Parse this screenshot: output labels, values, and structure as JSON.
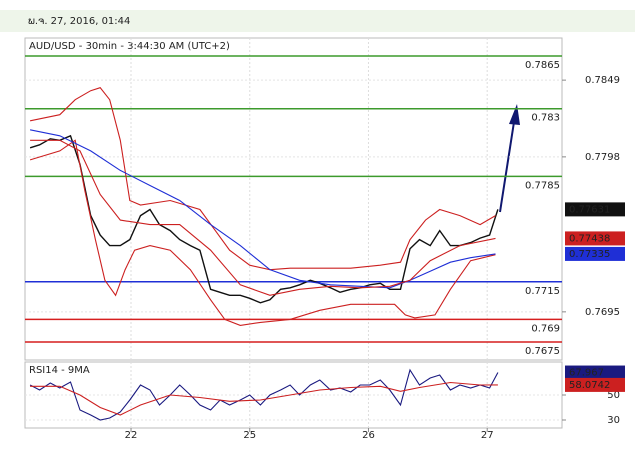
{
  "header": "ພ.ຈ. 27, 2016, 01:44",
  "chart_data": [
    {
      "type": "line",
      "title": "AUD/USD - 30min - 3:44:30 AM (UTC+2)",
      "xlim": [
        0.107,
        4.63
      ],
      "ylim": [
        0.7663,
        0.7877
      ],
      "yticks": [
        0.7695,
        0.7798,
        0.7849
      ],
      "grid": true,
      "levels": [
        {
          "value": 0.7865,
          "color": "#3c9a2c"
        },
        {
          "value": 0.783,
          "color": "#3c9a2c"
        },
        {
          "value": 0.7785,
          "color": "#3c9a2c"
        },
        {
          "value": 0.7715,
          "color": "#1f2fd6"
        },
        {
          "value": 0.769,
          "color": "#d61f1f"
        },
        {
          "value": 0.7675,
          "color": "#d61f1f"
        }
      ],
      "series": [
        {
          "color": "#111111",
          "tag": true,
          "x": [
            0.15,
            0.23,
            0.32,
            0.4,
            0.49,
            0.57,
            0.66,
            0.74,
            0.82,
            0.91,
            0.99,
            1.08,
            1.16,
            1.24,
            1.33,
            1.41,
            1.5,
            1.58,
            1.67,
            1.75,
            1.83,
            1.92,
            2.0,
            2.09,
            2.17,
            2.26,
            2.34,
            2.42,
            2.51,
            2.59,
            2.68,
            2.76,
            2.85,
            2.93,
            3.01,
            3.1,
            3.18,
            3.27,
            3.35,
            3.43,
            3.52,
            3.6,
            3.69,
            3.77,
            3.86,
            3.94,
            4.02,
            4.09
          ],
          "values": [
            0.7804,
            0.7806,
            0.781,
            0.7809,
            0.7812,
            0.7793,
            0.7759,
            0.7746,
            0.7739,
            0.7739,
            0.7743,
            0.7759,
            0.7763,
            0.7753,
            0.7749,
            0.7743,
            0.7739,
            0.7736,
            0.771,
            0.7708,
            0.7706,
            0.7706,
            0.7704,
            0.7701,
            0.7703,
            0.771,
            0.7711,
            0.7713,
            0.7716,
            0.7714,
            0.7711,
            0.7708,
            0.771,
            0.7711,
            0.7713,
            0.7714,
            0.771,
            0.771,
            0.7737,
            0.7743,
            0.7739,
            0.7749,
            0.7739,
            0.7739,
            0.7741,
            0.7744,
            0.7746,
            0.77631
          ]
        },
        {
          "color": "#cc2020",
          "x": [
            0.15,
            0.4,
            0.53,
            0.66,
            0.74,
            0.82,
            0.91,
            0.99,
            1.08,
            1.33,
            1.58,
            1.71,
            1.83,
            2.0,
            2.17,
            2.34,
            2.59,
            2.85,
            3.1,
            3.27,
            3.35,
            3.48,
            3.6,
            3.77,
            3.94,
            4.07
          ],
          "values": [
            0.7822,
            0.7826,
            0.7836,
            0.7842,
            0.7844,
            0.7836,
            0.7809,
            0.7769,
            0.7766,
            0.7769,
            0.7763,
            0.7749,
            0.7736,
            0.7726,
            0.7723,
            0.7724,
            0.7724,
            0.7724,
            0.7726,
            0.7728,
            0.7743,
            0.7756,
            0.7763,
            0.7759,
            0.7753,
            0.7759
          ]
        },
        {
          "color": "#cc2020",
          "x": [
            0.15,
            0.4,
            0.53,
            0.61,
            0.7,
            0.78,
            0.87,
            0.95,
            1.03,
            1.16,
            1.33,
            1.5,
            1.67,
            1.79,
            1.92,
            2.09,
            2.34,
            2.59,
            2.85,
            3.1,
            3.22,
            3.31,
            3.39,
            3.56,
            3.69,
            3.86,
            4.07
          ],
          "values": [
            0.7796,
            0.7802,
            0.7809,
            0.7776,
            0.7743,
            0.7716,
            0.7706,
            0.7723,
            0.7736,
            0.7739,
            0.7736,
            0.7723,
            0.7703,
            0.769,
            0.7686,
            0.7688,
            0.769,
            0.7696,
            0.77,
            0.77,
            0.77,
            0.7693,
            0.7691,
            0.7693,
            0.771,
            0.7729,
            0.7733
          ]
        },
        {
          "color": "#1f2fd6",
          "tag": true,
          "x": [
            0.15,
            0.4,
            0.66,
            0.91,
            1.16,
            1.41,
            1.67,
            1.92,
            2.17,
            2.42,
            2.68,
            2.93,
            3.18,
            3.35,
            3.52,
            3.69,
            3.86,
            4.07
          ],
          "values": [
            0.7816,
            0.7812,
            0.7802,
            0.7789,
            0.7779,
            0.7769,
            0.7753,
            0.7739,
            0.7723,
            0.7716,
            0.7713,
            0.7712,
            0.7711,
            0.7716,
            0.7722,
            0.7728,
            0.7731,
            0.77335
          ]
        },
        {
          "color": "#cc2020",
          "tag": true,
          "x": [
            0.15,
            0.4,
            0.57,
            0.74,
            0.91,
            1.16,
            1.41,
            1.67,
            1.92,
            2.17,
            2.42,
            2.68,
            2.93,
            3.18,
            3.35,
            3.52,
            3.77,
            4.07
          ],
          "values": [
            0.7809,
            0.7809,
            0.7802,
            0.7773,
            0.7756,
            0.7753,
            0.7753,
            0.7736,
            0.7713,
            0.7706,
            0.771,
            0.7712,
            0.7711,
            0.7712,
            0.7716,
            0.7729,
            0.7739,
            0.77438
          ]
        }
      ]
    },
    {
      "type": "line",
      "title": "RSI14 - 9MA",
      "xlim": [
        0.107,
        4.63
      ],
      "ylim": [
        23.6,
        76.4
      ],
      "xticks": [
        {
          "value": 1,
          "label": "22"
        },
        {
          "value": 2,
          "label": "25"
        },
        {
          "value": 3,
          "label": "26"
        },
        {
          "value": 4,
          "label": "27"
        }
      ],
      "yticks": [
        30,
        50
      ],
      "grid": true,
      "series": [
        {
          "color": "#1a1a80",
          "tag": true,
          "x": [
            0.15,
            0.23,
            0.32,
            0.4,
            0.49,
            0.57,
            0.66,
            0.74,
            0.82,
            0.91,
            0.99,
            1.08,
            1.16,
            1.24,
            1.33,
            1.41,
            1.5,
            1.58,
            1.67,
            1.75,
            1.83,
            1.92,
            2.0,
            2.09,
            2.17,
            2.26,
            2.34,
            2.42,
            2.51,
            2.59,
            2.68,
            2.76,
            2.85,
            2.93,
            3.01,
            3.1,
            3.18,
            3.27,
            3.35,
            3.43,
            3.52,
            3.6,
            3.69,
            3.77,
            3.86,
            3.94,
            4.02,
            4.09
          ],
          "values": [
            58,
            54,
            59.6,
            55.6,
            60.4,
            38,
            34,
            30,
            31.6,
            36.4,
            46,
            58,
            54,
            42,
            50,
            58,
            50,
            42,
            38,
            46,
            42,
            46,
            50,
            42,
            50,
            54,
            58,
            50,
            58,
            62,
            54,
            55.6,
            52.4,
            58,
            58,
            62,
            54,
            42,
            70,
            58,
            63.6,
            66,
            54,
            58,
            55.6,
            58,
            55.6,
            67.967
          ]
        },
        {
          "color": "#cc2020",
          "tag": true,
          "x": [
            0.15,
            0.4,
            0.57,
            0.74,
            0.91,
            1.08,
            1.33,
            1.58,
            1.83,
            2.09,
            2.34,
            2.59,
            2.85,
            3.1,
            3.27,
            3.43,
            3.69,
            3.94,
            4.09
          ],
          "values": [
            57,
            57,
            50,
            40,
            34,
            42,
            50,
            48,
            45,
            46,
            50,
            54,
            56,
            57,
            53,
            56,
            60,
            58,
            58.0742
          ]
        }
      ]
    }
  ]
}
